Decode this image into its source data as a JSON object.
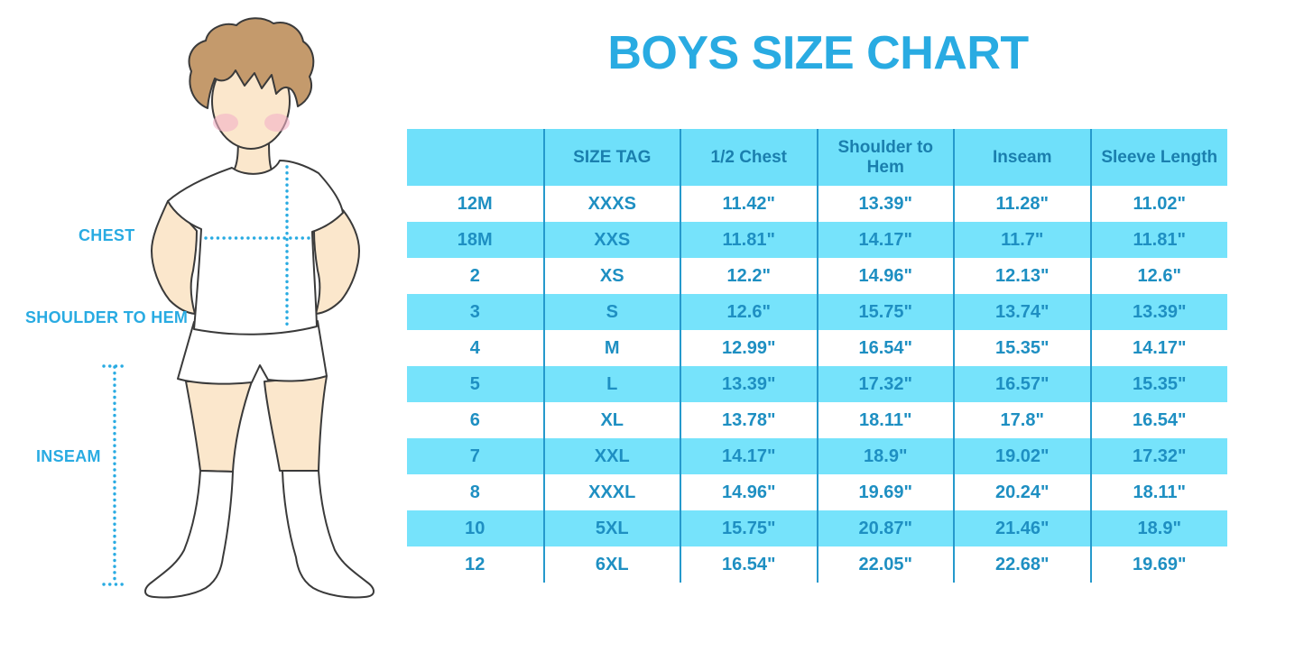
{
  "title": "BOYS SIZE CHART",
  "colors": {
    "accent": "#29ABE2",
    "header_bg": "#6FE0FA",
    "row_bg": "#76E3FB",
    "divider": "#2599CC",
    "header_text": "#1A7FAE",
    "cell_text": "#1E8FC2"
  },
  "figure": {
    "labels": {
      "chest": "CHEST",
      "shoulder_to_hem": "SHOULDER TO HEM",
      "inseam": "INSEAM"
    }
  },
  "chart_data": {
    "type": "table",
    "title": "BOYS SIZE CHART",
    "columns": [
      "",
      "SIZE TAG",
      "1/2 Chest",
      "Shoulder to Hem",
      "Inseam",
      "Sleeve Length"
    ],
    "rows": [
      [
        "12M",
        "XXXS",
        "11.42\"",
        "13.39\"",
        "11.28\"",
        "11.02\""
      ],
      [
        "18M",
        "XXS",
        "11.81\"",
        "14.17\"",
        "11.7\"",
        "11.81\""
      ],
      [
        "2",
        "XS",
        "12.2\"",
        "14.96\"",
        "12.13\"",
        "12.6\""
      ],
      [
        "3",
        "S",
        "12.6\"",
        "15.75\"",
        "13.74\"",
        "13.39\""
      ],
      [
        "4",
        "M",
        "12.99\"",
        "16.54\"",
        "15.35\"",
        "14.17\""
      ],
      [
        "5",
        "L",
        "13.39\"",
        "17.32\"",
        "16.57\"",
        "15.35\""
      ],
      [
        "6",
        "XL",
        "13.78\"",
        "18.11\"",
        "17.8\"",
        "16.54\""
      ],
      [
        "7",
        "XXL",
        "14.17\"",
        "18.9\"",
        "19.02\"",
        "17.32\""
      ],
      [
        "8",
        "XXXL",
        "14.96\"",
        "19.69\"",
        "20.24\"",
        "18.11\""
      ],
      [
        "10",
        "5XL",
        "15.75\"",
        "20.87\"",
        "21.46\"",
        "18.9\""
      ],
      [
        "12",
        "6XL",
        "16.54\"",
        "22.05\"",
        "22.68\"",
        "19.69\""
      ]
    ]
  }
}
